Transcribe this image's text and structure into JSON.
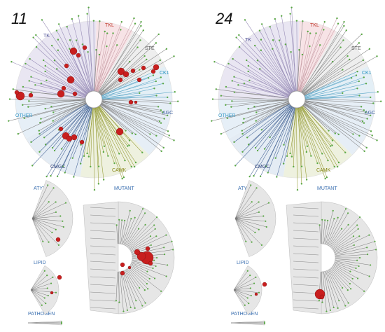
{
  "panels": [
    {
      "number": "11",
      "families": [
        {
          "label": "TK",
          "color": "#4b4e96"
        },
        {
          "label": "TKL",
          "color": "#c0392b"
        },
        {
          "label": "STE",
          "color": "#555555"
        },
        {
          "label": "CK1",
          "color": "#1f8fbf"
        },
        {
          "label": "AGC",
          "color": "#3b5c9a"
        },
        {
          "label": "CAMK",
          "color": "#8a8a1e"
        },
        {
          "label": "CMGC",
          "color": "#2b3f7a"
        },
        {
          "label": "OTHER",
          "color": "#3a9ac9"
        }
      ],
      "sections": {
        "atypical": "ATYPICAL",
        "mutant": "MUTANT",
        "lipid": "LIPID",
        "pathogen": "PATHOGEN"
      }
    },
    {
      "number": "24",
      "families": [
        {
          "label": "TK",
          "color": "#4b4e96"
        },
        {
          "label": "TKL",
          "color": "#c0392b"
        },
        {
          "label": "STE",
          "color": "#555555"
        },
        {
          "label": "CK1",
          "color": "#1f8fbf"
        },
        {
          "label": "AGC",
          "color": "#3b5c9a"
        },
        {
          "label": "CAMK",
          "color": "#8a8a1e"
        },
        {
          "label": "CMGC",
          "color": "#2b3f7a"
        },
        {
          "label": "OTHER",
          "color": "#3a9ac9"
        }
      ],
      "sections": {
        "atypical": "ATYPICAL",
        "mutant": "MUTANT",
        "lipid": "LIPID",
        "pathogen": "PATHOGEN"
      }
    }
  ],
  "colors": {
    "hit_circle": "#c81e1e",
    "leaf_dot": "#5aa845",
    "branch": "#8a8a8a",
    "sector_tk": "#e9e6f2",
    "sector_tkl": "#f7e3e6",
    "sector_ste": "#eeeeee",
    "sector_ck1": "#e4eff6",
    "sector_agc": "#e6eef6",
    "sector_camk": "#eef1df",
    "sector_cmgc": "#e4ecf4",
    "sector_other": "#e6eff7",
    "subtree_fill": "#e6e6e6"
  }
}
